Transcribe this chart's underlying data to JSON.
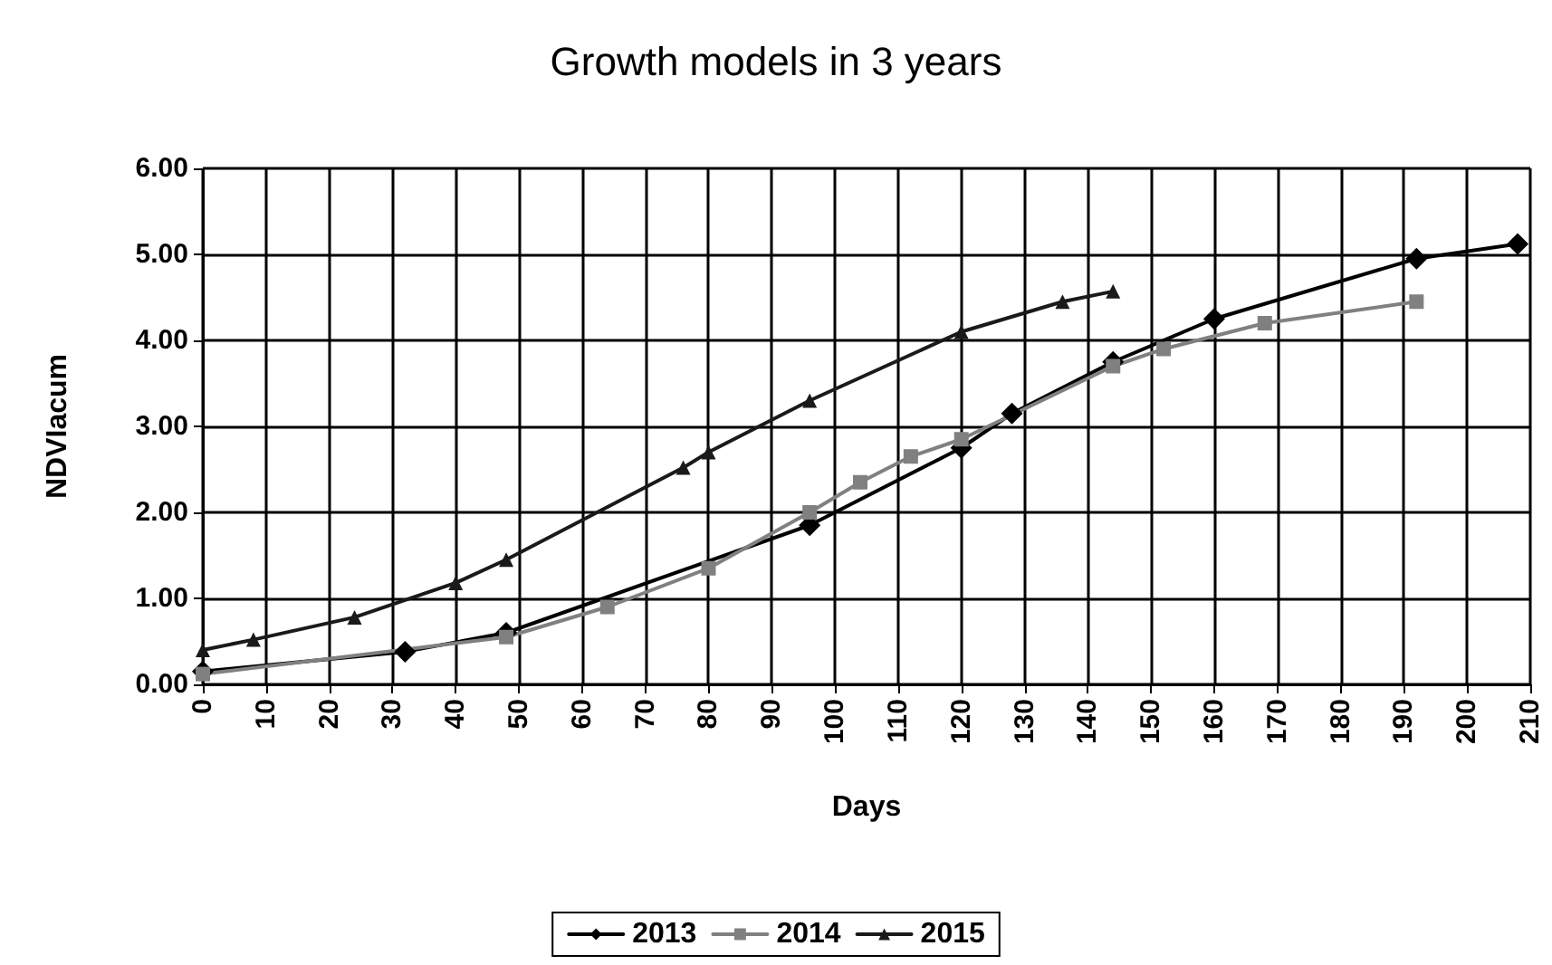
{
  "chart_data": {
    "type": "line",
    "title": "Growth models in 3 years",
    "xlabel": "Days",
    "ylabel": "NDVIacum",
    "series": [
      {
        "name": "2013",
        "color": "#000000",
        "marker": "diamond",
        "x": [
          0,
          32,
          48,
          96,
          120,
          128,
          144,
          160,
          192,
          208
        ],
        "values": [
          0.15,
          0.38,
          0.6,
          1.85,
          2.75,
          3.15,
          3.75,
          4.25,
          4.95,
          5.12
        ]
      },
      {
        "name": "2014",
        "color": "#808080",
        "marker": "square",
        "x": [
          0,
          48,
          64,
          80,
          96,
          104,
          112,
          120,
          144,
          152,
          168,
          192
        ],
        "values": [
          0.12,
          0.55,
          0.9,
          1.35,
          2.0,
          2.35,
          2.65,
          2.85,
          3.7,
          3.9,
          4.2,
          4.45
        ]
      },
      {
        "name": "2015",
        "color": "#1a1a1a",
        "marker": "triangle",
        "x": [
          0,
          8,
          24,
          40,
          48,
          76,
          80,
          96,
          120,
          136,
          144
        ],
        "values": [
          0.4,
          0.52,
          0.78,
          1.18,
          1.45,
          2.52,
          2.7,
          3.3,
          4.1,
          4.45,
          4.57
        ]
      }
    ],
    "xlim": [
      0,
      210
    ],
    "xticks": [
      0,
      10,
      20,
      30,
      40,
      50,
      60,
      70,
      80,
      90,
      100,
      110,
      120,
      130,
      140,
      150,
      160,
      170,
      180,
      190,
      200,
      210
    ],
    "ylim": [
      0,
      6
    ],
    "yticks": [
      {
        "value": 0,
        "label": "0.00"
      },
      {
        "value": 1,
        "label": "1.00"
      },
      {
        "value": 2,
        "label": "2.00"
      },
      {
        "value": 3,
        "label": "3.00"
      },
      {
        "value": 4,
        "label": "4.00"
      },
      {
        "value": 5,
        "label": "5.00"
      },
      {
        "value": 6,
        "label": "6.00"
      }
    ],
    "grid": true,
    "legend": "bottom",
    "line_style": "solid"
  }
}
